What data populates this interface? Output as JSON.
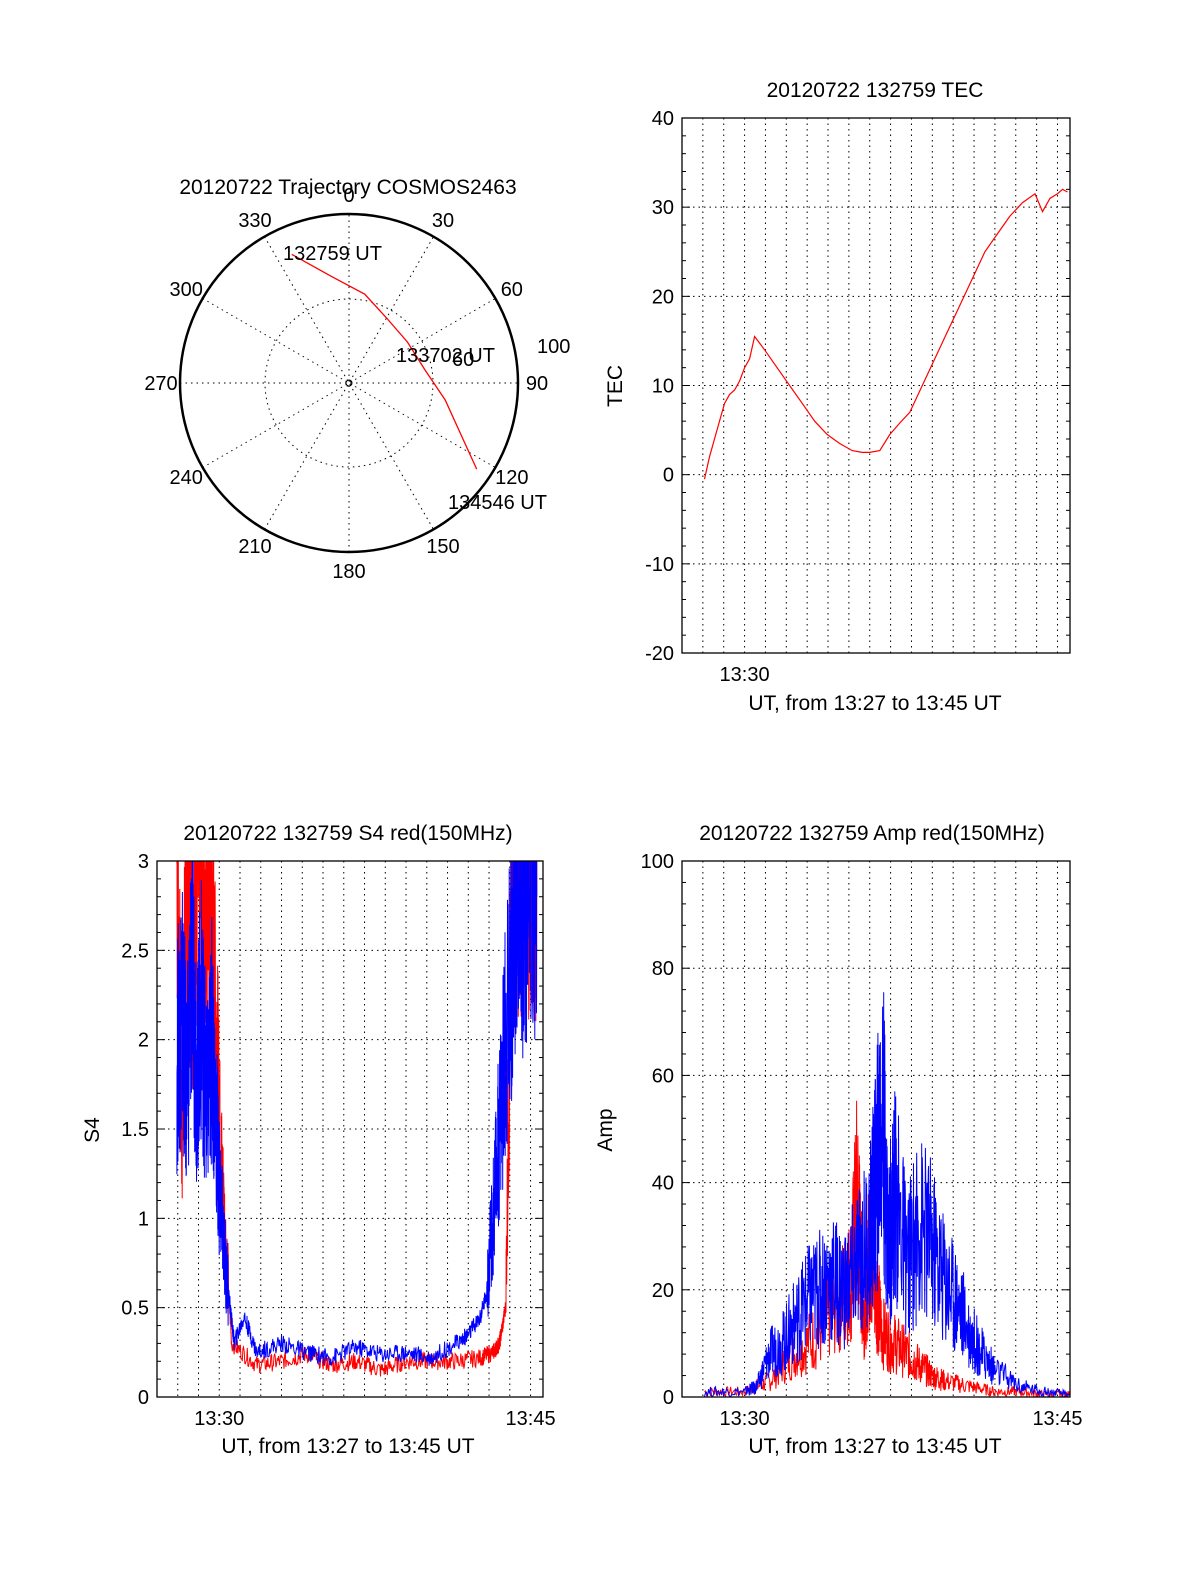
{
  "chart_data": [
    {
      "type": "polar",
      "title": "20120722 Trajectory COSMOS2463",
      "angle_labels": [
        "0",
        "30",
        "60",
        "90",
        "120",
        "150",
        "180",
        "210",
        "240",
        "270",
        "300",
        "330"
      ],
      "ring_labels": [
        "60",
        "100"
      ],
      "start_label": "132759 UT",
      "mid_label": "133702 UT",
      "end_label": "134546 UT",
      "color": "#ff0000",
      "track": [
        {
          "az": 336,
          "zen": 75
        },
        {
          "az": 350,
          "zen": 58
        },
        {
          "az": 10,
          "zen": 48
        },
        {
          "az": 30,
          "zen": 40
        },
        {
          "az": 55,
          "zen": 38
        },
        {
          "az": 80,
          "zen": 41
        },
        {
          "az": 100,
          "zen": 52
        },
        {
          "az": 115,
          "zen": 66
        },
        {
          "az": 124,
          "zen": 82
        }
      ]
    },
    {
      "type": "line",
      "title": "20120722 132759 TEC",
      "xlabel": "UT, from 13:27 to 13:45 UT",
      "ylabel": "TEC",
      "ylim": [
        -20,
        40
      ],
      "yticks": [
        "-20",
        "-10",
        "0",
        "10",
        "20",
        "30",
        "40"
      ],
      "xlim": [
        13.45,
        13.76
      ],
      "xticks": [
        {
          "v": 13.5,
          "label": "13:30"
        }
      ],
      "color": "#ff0000",
      "series": [
        {
          "x": [
            13.468,
            13.472,
            13.476,
            13.48,
            13.484,
            13.488,
            13.492,
            13.496,
            13.5,
            13.504,
            13.508,
            13.516,
            13.526,
            13.536,
            13.546,
            13.556,
            13.566,
            13.576,
            13.586,
            13.594,
            13.6,
            13.608,
            13.616,
            13.624,
            13.632,
            13.642,
            13.652,
            13.662,
            13.672,
            13.682,
            13.692,
            13.702,
            13.712,
            13.722,
            13.732,
            13.738,
            13.744,
            13.75,
            13.754,
            13.758
          ],
          "values": [
            -0.5,
            2,
            4,
            6,
            8,
            9,
            9.5,
            10.5,
            12,
            13,
            15.5,
            14,
            12,
            10,
            8,
            6,
            4.5,
            3.5,
            2.7,
            2.5,
            2.5,
            2.7,
            4.5,
            5.8,
            7,
            10,
            13,
            16,
            19,
            22,
            25,
            27,
            29,
            30.5,
            31.5,
            29.5,
            31,
            31.5,
            32,
            31.7
          ]
        }
      ]
    },
    {
      "type": "line",
      "title": "20120722 132759 S4 red(150MHz)",
      "xlabel": "UT, from 13:27 to 13:45 UT",
      "ylabel": "S4",
      "ylim": [
        0,
        3
      ],
      "yticks": [
        "0",
        "0.5",
        "1",
        "1.5",
        "2",
        "2.5",
        "3"
      ],
      "xlim": [
        13.45,
        13.76
      ],
      "xticks": [
        {
          "v": 13.5,
          "label": "13:30"
        },
        {
          "v": 13.75,
          "label": "13:45"
        }
      ],
      "series": [
        {
          "name": "red",
          "color": "#ff0000",
          "x": [
            13.466,
            13.47,
            13.474,
            13.478,
            13.482,
            13.486,
            13.49,
            13.494,
            13.498,
            13.5,
            13.504,
            13.51,
            13.53,
            13.55,
            13.57,
            13.59,
            13.61,
            13.63,
            13.65,
            13.67,
            13.69,
            13.71,
            13.72,
            13.725,
            13.73,
            13.735,
            13.74,
            13.745,
            13.75,
            13.755
          ],
          "values": [
            3,
            1.5,
            3,
            2.5,
            3,
            2.8,
            3,
            2.5,
            2,
            1.5,
            1,
            0.3,
            0.18,
            0.2,
            0.24,
            0.18,
            0.2,
            0.15,
            0.2,
            0.2,
            0.2,
            0.22,
            0.25,
            0.3,
            0.5,
            2.8,
            3,
            3,
            3,
            3
          ]
        },
        {
          "name": "blue",
          "color": "#0000ff",
          "x": [
            13.466,
            13.47,
            13.474,
            13.478,
            13.482,
            13.486,
            13.49,
            13.494,
            13.498,
            13.5,
            13.504,
            13.508,
            13.512,
            13.52,
            13.53,
            13.55,
            13.57,
            13.59,
            13.61,
            13.63,
            13.65,
            13.67,
            13.69,
            13.7,
            13.71,
            13.715,
            13.72,
            13.725,
            13.73,
            13.735,
            13.74,
            13.745,
            13.75,
            13.755
          ],
          "values": [
            1.9,
            2.2,
            1.7,
            2.5,
            1.8,
            2.2,
            1.6,
            2,
            1.5,
            1.2,
            0.8,
            0.55,
            0.3,
            0.45,
            0.25,
            0.3,
            0.25,
            0.22,
            0.28,
            0.24,
            0.25,
            0.22,
            0.3,
            0.35,
            0.45,
            0.6,
            1,
            1.5,
            2,
            2.5,
            3,
            2.7,
            3,
            2.8
          ]
        }
      ]
    },
    {
      "type": "line",
      "title": "20120722 132759 Amp red(150MHz)",
      "xlabel": "UT, from 13:27 to 13:45 UT",
      "ylabel": "Amp",
      "ylim": [
        0,
        100
      ],
      "yticks": [
        "0",
        "20",
        "40",
        "60",
        "80",
        "100"
      ],
      "xlim": [
        13.45,
        13.76
      ],
      "xticks": [
        {
          "v": 13.5,
          "label": "13:30"
        },
        {
          "v": 13.75,
          "label": "13:45"
        }
      ],
      "series": [
        {
          "name": "red",
          "color": "#ff0000",
          "x": [
            13.468,
            13.5,
            13.52,
            13.54,
            13.56,
            13.575,
            13.585,
            13.59,
            13.595,
            13.6,
            13.605,
            13.61,
            13.62,
            13.63,
            13.64,
            13.65,
            13.66,
            13.68,
            13.7,
            13.72,
            13.74,
            13.76
          ],
          "values": [
            1,
            1,
            3,
            8,
            12,
            18,
            22,
            38,
            15,
            28,
            20,
            12,
            10,
            8,
            6,
            4,
            3,
            2,
            1,
            1,
            0.5,
            0.5
          ]
        },
        {
          "name": "blue",
          "color": "#0000ff",
          "x": [
            13.468,
            13.5,
            13.51,
            13.52,
            13.53,
            13.54,
            13.55,
            13.56,
            13.57,
            13.58,
            13.59,
            13.6,
            13.605,
            13.61,
            13.615,
            13.62,
            13.63,
            13.64,
            13.65,
            13.66,
            13.67,
            13.68,
            13.69,
            13.7,
            13.72,
            13.74,
            13.76
          ],
          "values": [
            1,
            1,
            2,
            8,
            10,
            14,
            18,
            20,
            22,
            20,
            25,
            30,
            40,
            55,
            28,
            38,
            25,
            32,
            28,
            22,
            18,
            12,
            8,
            5,
            2,
            1,
            0.5
          ]
        }
      ]
    }
  ]
}
